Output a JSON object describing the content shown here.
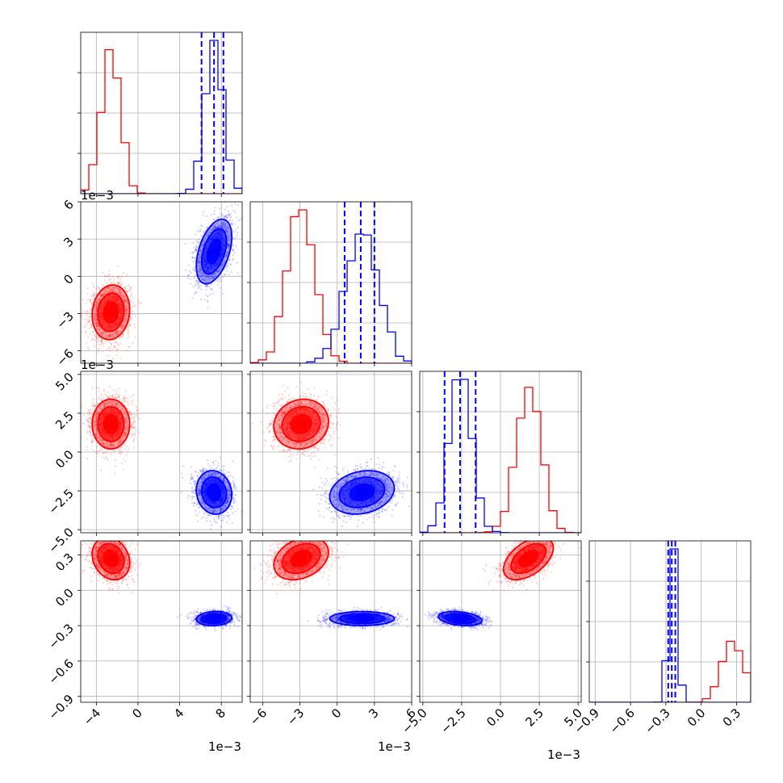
{
  "chart_data": {
    "type": "scatter",
    "variant": "corner-plot",
    "grid": true,
    "colors": {
      "red": "#ff0000",
      "blue": "#0000ff"
    },
    "offset_label": "1e−3",
    "params": [
      {
        "range": [
          -5.5,
          10
        ],
        "ticks": [
          -4,
          0,
          4,
          8
        ],
        "tick_labels": [
          "−4",
          "0",
          "4",
          "8"
        ],
        "offset_label": "1e−3"
      },
      {
        "range": [
          -7,
          6
        ],
        "ticks": [
          -6,
          -3,
          0,
          3,
          6
        ],
        "tick_labels": [
          "−6",
          "−3",
          "0",
          "3",
          "6"
        ],
        "offset_label": "1e−3"
      },
      {
        "range": [
          -5.2,
          5.2
        ],
        "ticks": [
          -5,
          -2.5,
          0,
          2.5,
          5
        ],
        "tick_labels": [
          "−5.0",
          "−2.5",
          "0.0",
          "2.5",
          "5.0"
        ],
        "offset_label": "1e−3"
      },
      {
        "range": [
          -0.95,
          0.42
        ],
        "ticks": [
          -0.9,
          -0.6,
          -0.3,
          0,
          0.3
        ],
        "tick_labels": [
          "−0.9",
          "−0.6",
          "−0.3",
          "0.0",
          "0.3"
        ],
        "offset_label": ""
      }
    ],
    "series": [
      {
        "color": "red",
        "mean": [
          -2.6,
          -2.9,
          1.8,
          0.27
        ],
        "sd": [
          0.9,
          1.1,
          0.8,
          0.09
        ],
        "corr": {
          "1-0": 0.1,
          "2-0": 0.0,
          "2-1": 0.1,
          "3-0": -0.2,
          "3-1": 0.3,
          "3-2": 0.5
        }
      },
      {
        "color": "blue",
        "mean": [
          7.3,
          2.0,
          -2.6,
          -0.24
        ],
        "sd": [
          0.85,
          1.3,
          0.7,
          0.03
        ],
        "corr": {
          "1-0": 0.45,
          "2-0": -0.1,
          "2-1": 0.2,
          "3-0": 0.1,
          "3-1": 0.0,
          "3-2": -0.3
        }
      }
    ],
    "quantile_lines": [
      [
        6.1,
        7.3,
        8.2
      ],
      [
        0.6,
        1.9,
        3.0
      ],
      [
        -3.6,
        -2.6,
        -1.6
      ],
      [
        -0.28,
        -0.25,
        -0.22
      ]
    ]
  }
}
